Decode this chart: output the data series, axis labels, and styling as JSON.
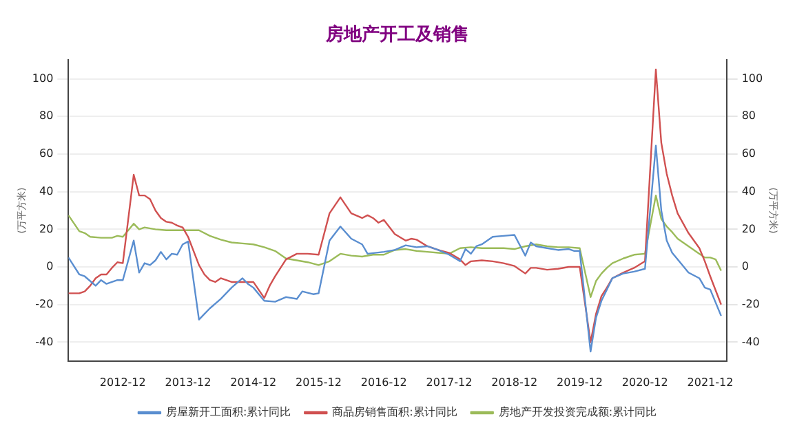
{
  "chart_data": {
    "type": "line",
    "title": "房地产开工及销售",
    "ylabel": "(万平方米)",
    "y2label": "(万平方米)",
    "xlim": [
      "2012-02",
      "2022-03"
    ],
    "xticks": [
      "2012-12",
      "2013-12",
      "2014-12",
      "2015-12",
      "2016-12",
      "2017-12",
      "2018-12",
      "2019-12",
      "2020-12",
      "2021-12"
    ],
    "ylim": [
      -50,
      110
    ],
    "yticks": [
      -40,
      -20,
      0,
      20,
      40,
      60,
      80,
      100
    ],
    "y2lim": [
      -50,
      110
    ],
    "y2ticks": [
      -40,
      -20,
      0,
      20,
      40,
      60,
      80,
      100
    ],
    "grid": "y",
    "legend": "bottom",
    "marker": "none",
    "line_style": "solid",
    "series": [
      {
        "name": "房屋新开工面积:累计同比",
        "color": "#5a8ed0",
        "x": [
          "2012-02",
          "2012-04",
          "2012-05",
          "2012-07",
          "2012-08",
          "2012-09",
          "2012-10",
          "2012-11",
          "2012-12",
          "2013-02",
          "2013-03",
          "2013-04",
          "2013-05",
          "2013-06",
          "2013-07",
          "2013-08",
          "2013-09",
          "2013-10",
          "2013-11",
          "2013-12",
          "2014-02",
          "2014-03",
          "2014-04",
          "2014-06",
          "2014-08",
          "2014-10",
          "2014-11",
          "2014-12",
          "2015-02",
          "2015-04",
          "2015-06",
          "2015-08",
          "2015-09",
          "2015-11",
          "2015-12",
          "2016-02",
          "2016-04",
          "2016-06",
          "2016-08",
          "2016-09",
          "2016-12",
          "2017-02",
          "2017-04",
          "2017-06",
          "2017-08",
          "2017-10",
          "2017-12",
          "2018-02",
          "2018-03",
          "2018-04",
          "2018-05",
          "2018-06",
          "2018-08",
          "2018-10",
          "2018-12",
          "2019-02",
          "2019-03",
          "2019-04",
          "2019-06",
          "2019-08",
          "2019-10",
          "2019-11",
          "2019-12",
          "2020-02",
          "2020-03",
          "2020-04",
          "2020-05",
          "2020-06",
          "2020-08",
          "2020-10",
          "2020-12",
          "2021-02",
          "2021-03",
          "2021-04",
          "2021-05",
          "2021-06",
          "2021-08",
          "2021-10",
          "2021-11",
          "2021-12",
          "2022-02"
        ],
        "values": [
          5,
          -4,
          -5,
          -10,
          -7,
          -9,
          -8,
          -7,
          -7,
          14,
          -3,
          2,
          1,
          3.5,
          8,
          4,
          7,
          6.5,
          12,
          13.5,
          -28,
          -25,
          -22,
          -17,
          -11,
          -6,
          -9,
          -11,
          -18,
          -18.5,
          -16,
          -17,
          -13,
          -14.5,
          -14,
          14,
          21.5,
          15,
          12,
          7,
          8,
          9,
          11.5,
          10.5,
          11,
          9,
          6.5,
          3,
          9.5,
          7,
          11,
          12,
          16,
          16.5,
          17,
          6,
          13,
          11,
          10,
          9,
          9.5,
          8.5,
          8.5,
          -45,
          -27,
          -18,
          -12,
          -6,
          -3.5,
          -2.5,
          -1,
          64.5,
          30,
          14,
          7.5,
          4,
          -3,
          -6,
          -11,
          -12,
          -26
        ]
      },
      {
        "name": "商品房销售面积:累计同比",
        "color": "#d05050",
        "x": [
          "2012-02",
          "2012-04",
          "2012-05",
          "2012-06",
          "2012-07",
          "2012-08",
          "2012-09",
          "2012-10",
          "2012-11",
          "2012-12",
          "2013-02",
          "2013-03",
          "2013-04",
          "2013-05",
          "2013-06",
          "2013-07",
          "2013-08",
          "2013-09",
          "2013-10",
          "2013-11",
          "2013-12",
          "2014-02",
          "2014-03",
          "2014-04",
          "2014-05",
          "2014-06",
          "2014-08",
          "2014-10",
          "2014-12",
          "2015-02",
          "2015-03",
          "2015-04",
          "2015-06",
          "2015-08",
          "2015-10",
          "2015-12",
          "2016-02",
          "2016-04",
          "2016-06",
          "2016-08",
          "2016-09",
          "2016-10",
          "2016-11",
          "2016-12",
          "2017-02",
          "2017-04",
          "2017-05",
          "2017-06",
          "2017-08",
          "2017-10",
          "2017-12",
          "2018-02",
          "2018-03",
          "2018-04",
          "2018-06",
          "2018-08",
          "2018-10",
          "2018-12",
          "2019-02",
          "2019-03",
          "2019-04",
          "2019-06",
          "2019-08",
          "2019-10",
          "2019-12",
          "2020-02",
          "2020-03",
          "2020-04",
          "2020-05",
          "2020-06",
          "2020-08",
          "2020-10",
          "2020-12",
          "2021-02",
          "2021-03",
          "2021-04",
          "2021-05",
          "2021-06",
          "2021-08",
          "2021-10",
          "2021-11",
          "2021-12",
          "2022-02"
        ],
        "values": [
          -14,
          -14,
          -13,
          -10,
          -6,
          -4,
          -4,
          -0.5,
          2.5,
          2,
          49,
          38,
          38,
          36,
          30,
          26,
          24,
          23.5,
          22,
          21,
          16,
          1,
          -4,
          -7,
          -8,
          -6,
          -8,
          -8,
          -8,
          -16.5,
          -10,
          -5,
          4,
          7,
          7,
          6.5,
          28.5,
          37,
          28.5,
          26,
          27.5,
          26,
          23.5,
          25,
          17.5,
          14,
          15,
          14.5,
          11,
          9,
          7.5,
          4,
          1,
          3,
          3.5,
          3,
          2,
          0.5,
          -3.5,
          -0.5,
          -0.5,
          -1.5,
          -1,
          0,
          0,
          -40,
          -25,
          -15.5,
          -11,
          -6,
          -3,
          -0.5,
          3,
          105,
          66,
          49.5,
          38,
          28.5,
          18,
          10,
          3,
          -5,
          -20
        ]
      },
      {
        "name": "房地产开发投资完成额:累计同比",
        "color": "#9bbb59",
        "x": [
          "2012-02",
          "2012-04",
          "2012-05",
          "2012-06",
          "2012-08",
          "2012-10",
          "2012-11",
          "2012-12",
          "2013-02",
          "2013-03",
          "2013-04",
          "2013-06",
          "2013-08",
          "2013-10",
          "2013-12",
          "2014-02",
          "2014-04",
          "2014-06",
          "2014-08",
          "2014-10",
          "2014-12",
          "2015-02",
          "2015-04",
          "2015-06",
          "2015-08",
          "2015-10",
          "2015-12",
          "2016-02",
          "2016-04",
          "2016-06",
          "2016-08",
          "2016-10",
          "2016-12",
          "2017-02",
          "2017-04",
          "2017-06",
          "2017-08",
          "2017-10",
          "2017-12",
          "2018-02",
          "2018-04",
          "2018-06",
          "2018-08",
          "2018-10",
          "2018-12",
          "2019-02",
          "2019-04",
          "2019-06",
          "2019-08",
          "2019-10",
          "2019-12",
          "2020-02",
          "2020-03",
          "2020-04",
          "2020-05",
          "2020-06",
          "2020-08",
          "2020-10",
          "2020-12",
          "2021-02",
          "2021-03",
          "2021-04",
          "2021-05",
          "2021-06",
          "2021-08",
          "2021-10",
          "2021-11",
          "2021-12",
          "2022-01",
          "2022-02"
        ],
        "values": [
          27.5,
          19,
          18,
          16,
          15.5,
          15.5,
          16.5,
          16,
          23,
          20,
          21,
          20,
          19.5,
          19.5,
          19.5,
          19.5,
          16.5,
          14.5,
          13,
          12.5,
          12,
          10.5,
          8.5,
          4.5,
          3.5,
          2.5,
          1,
          3,
          7,
          6,
          5.5,
          6.5,
          6.5,
          9,
          9.5,
          8.5,
          8,
          7.5,
          7,
          10,
          10.5,
          10,
          10,
          10,
          9.5,
          11,
          12,
          11,
          10.5,
          10.5,
          10,
          -16,
          -7.5,
          -3.5,
          -0.5,
          2,
          4.5,
          6.5,
          7,
          38,
          25.5,
          21.5,
          18.5,
          15,
          11,
          7,
          5,
          5,
          4,
          -2
        ]
      }
    ]
  }
}
